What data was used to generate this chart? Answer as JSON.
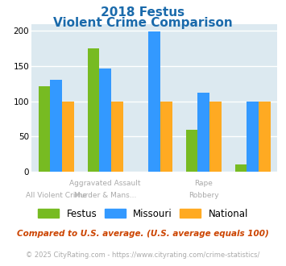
{
  "title_line1": "2018 Festus",
  "title_line2": "Violent Crime Comparison",
  "title_color": "#1a6aab",
  "festus_values": [
    121,
    175,
    0,
    60,
    10
  ],
  "missouri_values": [
    131,
    147,
    199,
    112,
    100
  ],
  "national_values": [
    100,
    100,
    100,
    100,
    100
  ],
  "festus_color": "#77bb22",
  "missouri_color": "#3399ff",
  "national_color": "#ffaa22",
  "ylim": [
    0,
    210
  ],
  "yticks": [
    0,
    50,
    100,
    150,
    200
  ],
  "background_color": "#dce9f0",
  "grid_color": "#ffffff",
  "top_row_labels": [
    "",
    "Aggravated Assault",
    "",
    "Rape",
    ""
  ],
  "bottom_row_labels": [
    "All Violent Crime",
    "Murder & Mans...",
    "",
    "Robbery",
    ""
  ],
  "label_color": "#aaaaaa",
  "footnote1": "Compared to U.S. average. (U.S. average equals 100)",
  "footnote2": "© 2025 CityRating.com - https://www.cityrating.com/crime-statistics/",
  "footnote1_color": "#cc4400",
  "footnote2_color": "#aaaaaa",
  "legend_labels": [
    "Festus",
    "Missouri",
    "National"
  ]
}
